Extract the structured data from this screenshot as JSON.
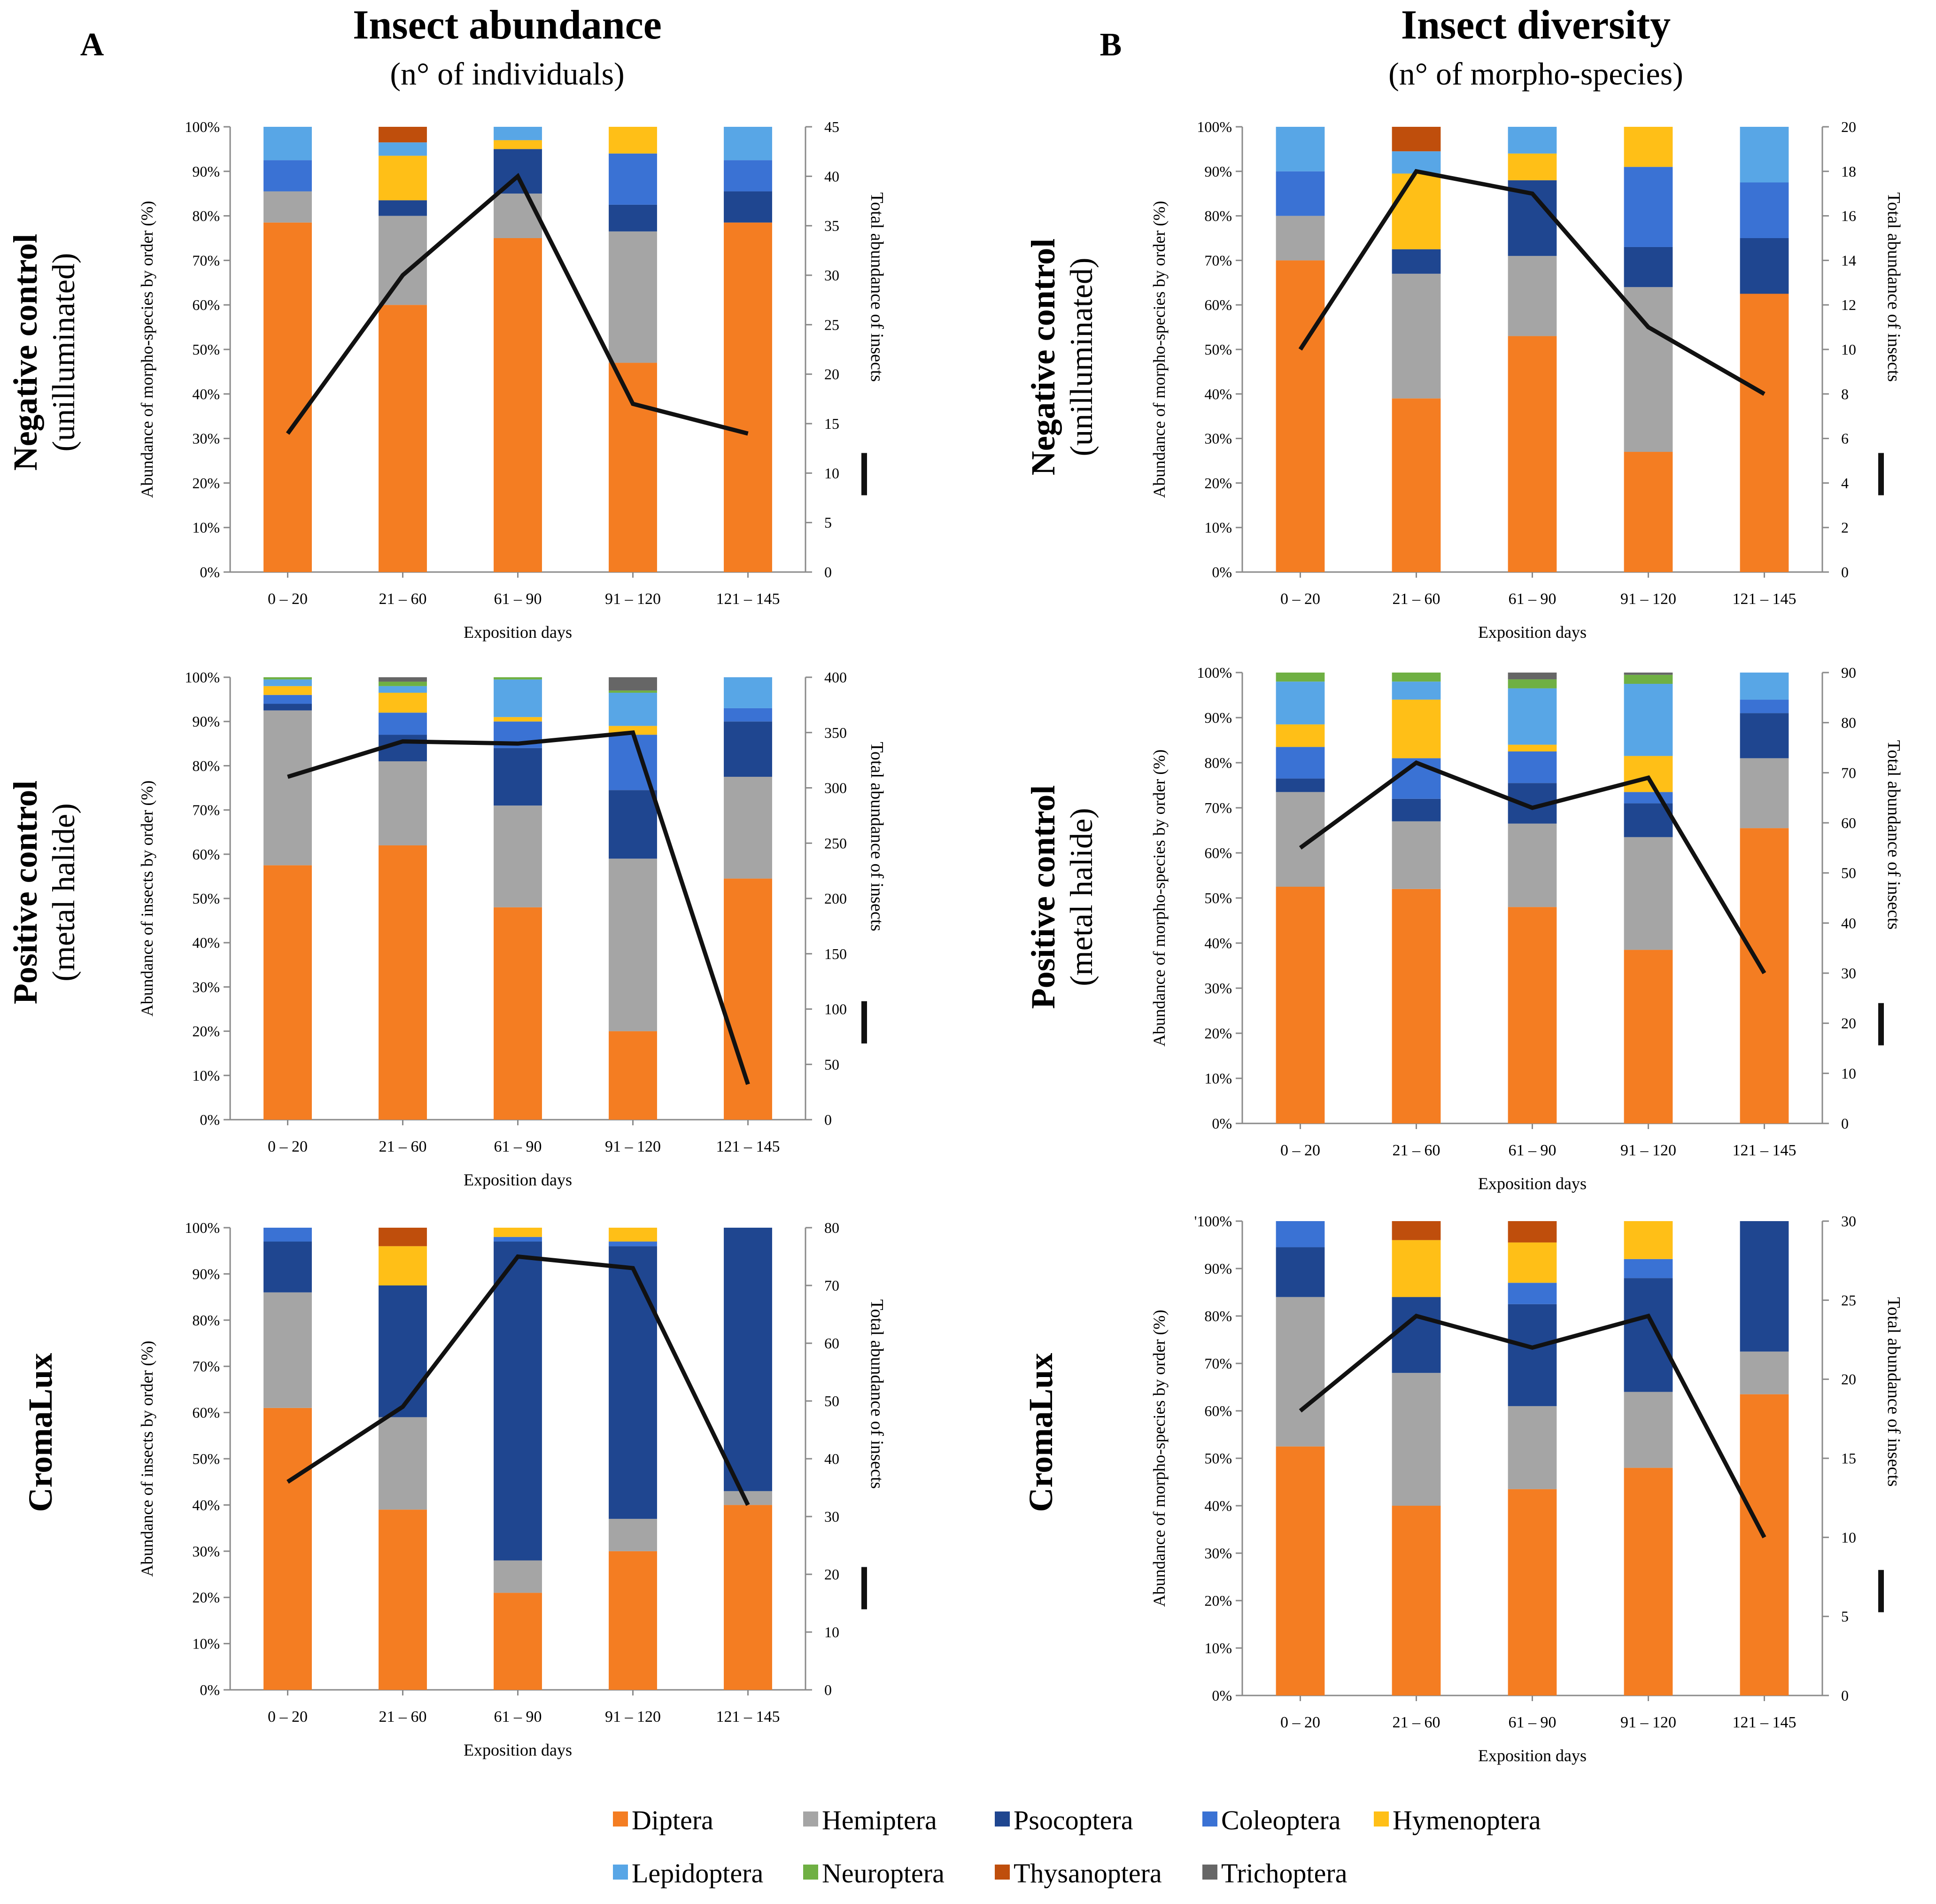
{
  "colors": {
    "Diptera": "#F47D22",
    "Hemiptera": "#A5A5A5",
    "Psocoptera": "#1F4690",
    "Coleoptera": "#3A72D4",
    "Hymenoptera": "#FFBF17",
    "Lepidoptera": "#58A6E6",
    "Neuroptera": "#6FB043",
    "Thysanoptera": "#BF4E0C",
    "Trichoptera": "#666666",
    "line": "#111111"
  },
  "columns": [
    {
      "letter": "A",
      "title": "Insect abundance",
      "subtitle": "(n° of individuals)"
    },
    {
      "letter": "B",
      "title": "Insect diversity",
      "subtitle": "(n° of morpho-species)"
    }
  ],
  "rows": [
    {
      "title": "Negative control",
      "subtitle": "(unilluminated)"
    },
    {
      "title": "Positive control",
      "subtitle": "(metal  halide)"
    },
    {
      "title": "CromaLux",
      "subtitle": ""
    }
  ],
  "legend": [
    "Diptera",
    "Hemiptera",
    "Psocoptera",
    "Coleoptera",
    "Hymenoptera",
    "Lepidoptera",
    "Neuroptera",
    "Thysanoptera",
    "Trichoptera"
  ],
  "chart_data": [
    {
      "id": "A1",
      "type": "bar",
      "categories": [
        "0 – 20",
        "21 – 60",
        "61 – 90",
        "91 – 120",
        "121 – 145"
      ],
      "xlabel": "Exposition days",
      "ylabel": "Abundance of morpho-species by order (%)",
      "y2label": "Total abundance of insects",
      "yticks": [
        "0%",
        "10%",
        "20%",
        "30%",
        "40%",
        "50%",
        "60%",
        "70%",
        "80%",
        "90%",
        "100%"
      ],
      "y2ticks": [
        "0",
        "5",
        "10",
        "15",
        "20",
        "25",
        "30",
        "35",
        "40",
        "45"
      ],
      "ylim": [
        0,
        100
      ],
      "y2lim": [
        0,
        45
      ],
      "series": [
        {
          "name": "Diptera",
          "values": [
            78.5,
            60,
            75,
            47,
            78.5
          ]
        },
        {
          "name": "Hemiptera",
          "values": [
            7,
            20,
            10,
            29.5,
            0
          ]
        },
        {
          "name": "Psocoptera",
          "values": [
            0,
            3.5,
            10,
            6,
            7
          ]
        },
        {
          "name": "Coleoptera",
          "values": [
            7,
            0,
            0,
            11.5,
            7
          ]
        },
        {
          "name": "Hymenoptera",
          "values": [
            0,
            10,
            2,
            6,
            0
          ]
        },
        {
          "name": "Lepidoptera",
          "values": [
            7.5,
            3,
            3,
            0,
            7.5
          ]
        },
        {
          "name": "Neuroptera",
          "values": [
            0,
            0,
            0,
            0,
            0
          ]
        },
        {
          "name": "Thysanoptera",
          "values": [
            0,
            3.5,
            0,
            0,
            0
          ]
        },
        {
          "name": "Trichoptera",
          "values": [
            0,
            0,
            0,
            0,
            0
          ]
        }
      ],
      "total": [
        14,
        30,
        40,
        17,
        14
      ]
    },
    {
      "id": "B1",
      "type": "bar",
      "categories": [
        "0 – 20",
        "21 – 60",
        "61 – 90",
        "91 – 120",
        "121 – 145"
      ],
      "xlabel": "Exposition days",
      "ylabel": "Abundance of morpho-species by order (%)",
      "y2label": "Total abundance of insects",
      "yticks": [
        "0%",
        "10%",
        "20%",
        "30%",
        "40%",
        "50%",
        "60%",
        "70%",
        "80%",
        "90%",
        "100%"
      ],
      "y2ticks": [
        "0",
        "2",
        "4",
        "6",
        "8",
        "10",
        "12",
        "14",
        "16",
        "18",
        "20"
      ],
      "ylim": [
        0,
        100
      ],
      "y2lim": [
        0,
        20
      ],
      "series": [
        {
          "name": "Diptera",
          "values": [
            70,
            39,
            53,
            27,
            62.5
          ]
        },
        {
          "name": "Hemiptera",
          "values": [
            10,
            28,
            18,
            37,
            0
          ]
        },
        {
          "name": "Psocoptera",
          "values": [
            0,
            5.5,
            17,
            9,
            12.5
          ]
        },
        {
          "name": "Coleoptera",
          "values": [
            10,
            0,
            0,
            18,
            12.5
          ]
        },
        {
          "name": "Hymenoptera",
          "values": [
            0,
            17,
            6,
            9,
            0
          ]
        },
        {
          "name": "Lepidoptera",
          "values": [
            10,
            5,
            6,
            0,
            12.5
          ]
        },
        {
          "name": "Neuroptera",
          "values": [
            0,
            0,
            0,
            0,
            0
          ]
        },
        {
          "name": "Thysanoptera",
          "values": [
            0,
            5.5,
            0,
            0,
            0
          ]
        },
        {
          "name": "Trichoptera",
          "values": [
            0,
            0,
            0,
            0,
            0
          ]
        }
      ],
      "total": [
        10,
        18,
        17,
        11,
        8
      ]
    },
    {
      "id": "A2",
      "type": "bar",
      "categories": [
        "0 – 20",
        "21 – 60",
        "61 – 90",
        "91 – 120",
        "121 – 145"
      ],
      "xlabel": "Exposition days",
      "ylabel": "Abundance of insects by order (%)",
      "y2label": "Total abundance of insects",
      "yticks": [
        "0%",
        "10%",
        "20%",
        "30%",
        "40%",
        "50%",
        "60%",
        "70%",
        "80%",
        "90%",
        "100%"
      ],
      "y2ticks": [
        "0",
        "50",
        "100",
        "150",
        "200",
        "250",
        "300",
        "350",
        "400"
      ],
      "ylim": [
        0,
        100
      ],
      "y2lim": [
        0,
        400
      ],
      "series": [
        {
          "name": "Diptera",
          "values": [
            57.5,
            62,
            48,
            20,
            54.5
          ]
        },
        {
          "name": "Hemiptera",
          "values": [
            35,
            19,
            23,
            39,
            23
          ]
        },
        {
          "name": "Psocoptera",
          "values": [
            1.5,
            6,
            13,
            15.5,
            12.5
          ]
        },
        {
          "name": "Coleoptera",
          "values": [
            2,
            5,
            6,
            12.5,
            3
          ]
        },
        {
          "name": "Hymenoptera",
          "values": [
            2,
            4.5,
            1,
            2,
            0
          ]
        },
        {
          "name": "Lepidoptera",
          "values": [
            1.5,
            1.5,
            8.5,
            7.5,
            7
          ]
        },
        {
          "name": "Neuroptera",
          "values": [
            0.5,
            1,
            0.5,
            0.5,
            0
          ]
        },
        {
          "name": "Thysanoptera",
          "values": [
            0,
            0,
            0,
            0,
            0
          ]
        },
        {
          "name": "Trichoptera",
          "values": [
            0,
            1,
            0,
            3,
            0
          ]
        }
      ],
      "total": [
        310,
        342,
        340,
        350,
        32
      ]
    },
    {
      "id": "B2",
      "type": "bar",
      "categories": [
        "0 – 20",
        "21 – 60",
        "61 – 90",
        "91 – 120",
        "121 – 145"
      ],
      "xlabel": "Exposition days",
      "ylabel": "Abundance of morpho-species by order (%)",
      "y2label": "Total abundance of insects",
      "yticks": [
        "0%",
        "10%",
        "20%",
        "30%",
        "40%",
        "50%",
        "60%",
        "70%",
        "80%",
        "90%",
        "100%"
      ],
      "y2ticks": [
        "0",
        "10",
        "20",
        "30",
        "40",
        "50",
        "60",
        "70",
        "80",
        "90"
      ],
      "ylim": [
        0,
        100
      ],
      "y2lim": [
        0,
        90
      ],
      "series": [
        {
          "name": "Diptera",
          "values": [
            52.5,
            52,
            48,
            38.5,
            65.5
          ]
        },
        {
          "name": "Hemiptera",
          "values": [
            21,
            15,
            18.5,
            25,
            15.5
          ]
        },
        {
          "name": "Psocoptera",
          "values": [
            3,
            5,
            9,
            7.5,
            10
          ]
        },
        {
          "name": "Coleoptera",
          "values": [
            7,
            9,
            7,
            2.5,
            3
          ]
        },
        {
          "name": "Hymenoptera",
          "values": [
            5,
            13,
            1.5,
            8,
            0
          ]
        },
        {
          "name": "Lepidoptera",
          "values": [
            9.5,
            4,
            12.5,
            16,
            6
          ]
        },
        {
          "name": "Neuroptera",
          "values": [
            2,
            2,
            2,
            2,
            0
          ]
        },
        {
          "name": "Thysanoptera",
          "values": [
            0,
            0,
            0,
            0,
            0
          ]
        },
        {
          "name": "Trichoptera",
          "values": [
            0,
            0,
            1.5,
            0.5,
            0
          ]
        }
      ],
      "total": [
        55,
        72,
        63,
        69,
        30
      ]
    },
    {
      "id": "A3",
      "type": "bar",
      "categories": [
        "0 – 20",
        "21 – 60",
        "61 – 90",
        "91 – 120",
        "121 – 145"
      ],
      "xlabel": "Exposition days",
      "ylabel": "Abundance of insects by order (%)",
      "y2label": "Total abundance of insects",
      "yticks": [
        "0%",
        "10%",
        "20%",
        "30%",
        "40%",
        "50%",
        "60%",
        "70%",
        "80%",
        "90%",
        "100%"
      ],
      "y2ticks": [
        "0",
        "10",
        "20",
        "30",
        "40",
        "50",
        "60",
        "70",
        "80"
      ],
      "ylim": [
        0,
        100
      ],
      "y2lim": [
        0,
        80
      ],
      "series": [
        {
          "name": "Diptera",
          "values": [
            61,
            39,
            21,
            30,
            40
          ]
        },
        {
          "name": "Hemiptera",
          "values": [
            25,
            20,
            7,
            7,
            3
          ]
        },
        {
          "name": "Psocoptera",
          "values": [
            11,
            28.5,
            69,
            59,
            57
          ]
        },
        {
          "name": "Coleoptera",
          "values": [
            3,
            0,
            1,
            1,
            0
          ]
        },
        {
          "name": "Hymenoptera",
          "values": [
            0,
            8.5,
            2,
            3,
            0
          ]
        },
        {
          "name": "Lepidoptera",
          "values": [
            0,
            0,
            0,
            0,
            0
          ]
        },
        {
          "name": "Neuroptera",
          "values": [
            0,
            0,
            0,
            0,
            0
          ]
        },
        {
          "name": "Thysanoptera",
          "values": [
            0,
            4,
            0,
            0,
            0
          ]
        },
        {
          "name": "Trichoptera",
          "values": [
            0,
            0,
            0,
            0,
            0
          ]
        }
      ],
      "total": [
        36,
        49,
        75,
        73,
        32
      ]
    },
    {
      "id": "B3",
      "type": "bar",
      "categories": [
        "0 – 20",
        "21 – 60",
        "61 – 90",
        "91 – 120",
        "121 – 145"
      ],
      "xlabel": "Exposition days",
      "ylabel": "Abundance of morpho-species by order (%)",
      "y2label": "Total abundance of insects",
      "yticks": [
        "0%",
        "10%",
        "20%",
        "30%",
        "40%",
        "50%",
        "60%",
        "70%",
        "80%",
        "90%",
        "'100%"
      ],
      "y2ticks": [
        "0",
        "5",
        "10",
        "15",
        "20",
        "25",
        "30"
      ],
      "ylim": [
        0,
        100
      ],
      "y2lim": [
        0,
        30
      ],
      "series": [
        {
          "name": "Diptera",
          "values": [
            52.5,
            40,
            43.5,
            48,
            63.5
          ]
        },
        {
          "name": "Hemiptera",
          "values": [
            31.5,
            28,
            17.5,
            16,
            9
          ]
        },
        {
          "name": "Psocoptera",
          "values": [
            10.5,
            16,
            21.5,
            24,
            27.5
          ]
        },
        {
          "name": "Coleoptera",
          "values": [
            5.5,
            0,
            4.5,
            4,
            0
          ]
        },
        {
          "name": "Hymenoptera",
          "values": [
            0,
            12,
            8.5,
            8,
            0
          ]
        },
        {
          "name": "Lepidoptera",
          "values": [
            0,
            0,
            0,
            0,
            0
          ]
        },
        {
          "name": "Neuroptera",
          "values": [
            0,
            0,
            0,
            0,
            0
          ]
        },
        {
          "name": "Thysanoptera",
          "values": [
            0,
            4,
            4.5,
            0,
            0
          ]
        },
        {
          "name": "Trichoptera",
          "values": [
            0,
            0,
            0,
            0,
            0
          ]
        }
      ],
      "total": [
        18,
        24,
        22,
        24,
        10
      ]
    }
  ]
}
